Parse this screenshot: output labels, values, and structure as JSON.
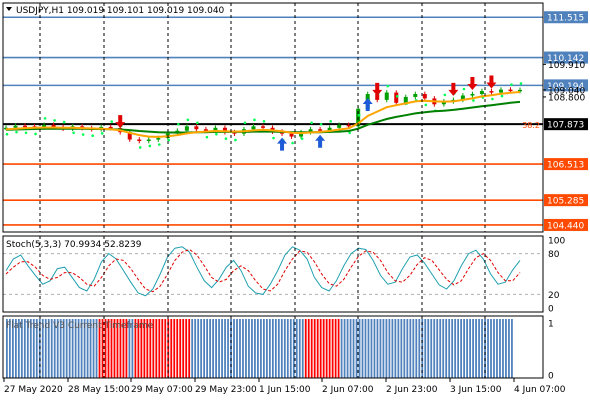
{
  "header": {
    "symbol_line": "USDJPY,H1  109.019 109.101 109.019 109.040"
  },
  "colors": {
    "background": "#ffffff",
    "grid": "#000000",
    "hline_blue": "#4f81bd",
    "hline_orange": "#ff4a00",
    "hline_black": "#000000",
    "price_label_blue": "#4f81bd",
    "price_label_orange": "#ff4a00",
    "price_label_black": "#000000",
    "candle_up": "#00a000",
    "candle_down": "#e00000",
    "ma_fast": "#ffa500",
    "ma_slow": "#008000",
    "psar": "#00ff55",
    "arrow_up": "#1e5bd6",
    "arrow_down": "#e00000",
    "stoch_main": "#20a0b0",
    "stoch_signal": "#e00000",
    "flat_blue": "#4f81bd",
    "flat_red": "#ff0000"
  },
  "chart_data": [
    {
      "type": "line",
      "title": "USDJPY,H1",
      "ohlc_header": {
        "open": 109.019,
        "high": 109.101,
        "low": 109.019,
        "close": 109.04
      },
      "y_axis": {
        "min": 104.2,
        "max": 112.0,
        "tick_labels": [
          "111.515",
          "110.142",
          "109.910",
          "109.194",
          "109.040",
          "108.800",
          "107.873",
          "106.513",
          "105.285",
          "104.440"
        ]
      },
      "x_axis": {
        "tick_labels": [
          "27 May 2020",
          "28 May 15:00",
          "29 May 07:00",
          "29 May 23:00",
          "1 Jun 15:00",
          "2 Jun 07:00",
          "2 Jun 23:00",
          "3 Jun 15:00",
          "4 Jun 07:00"
        ]
      },
      "horizontal_levels": [
        {
          "price": 111.515,
          "color": "blue"
        },
        {
          "price": 110.142,
          "color": "blue"
        },
        {
          "price": 109.194,
          "color": "blue"
        },
        {
          "price": 107.873,
          "color": "black",
          "label": "38.2"
        },
        {
          "price": 106.513,
          "color": "orange"
        },
        {
          "price": 105.285,
          "color": "orange"
        },
        {
          "price": 104.44,
          "color": "orange"
        }
      ],
      "close_series": [
        107.75,
        107.82,
        107.8,
        107.76,
        107.85,
        107.78,
        107.72,
        107.8,
        107.74,
        107.7,
        107.78,
        107.74,
        107.6,
        107.35,
        107.3,
        107.35,
        107.4,
        107.55,
        107.65,
        107.8,
        107.7,
        107.65,
        107.75,
        107.6,
        107.55,
        107.7,
        107.8,
        107.75,
        107.62,
        107.55,
        107.45,
        107.6,
        107.7,
        107.65,
        107.75,
        107.85,
        107.8,
        108.4,
        108.9,
        108.7,
        108.95,
        108.6,
        108.8,
        108.9,
        108.75,
        108.55,
        108.65,
        108.7,
        108.85,
        108.9,
        109.0,
        108.95,
        109.05,
        109.0,
        109.04
      ],
      "ma_fast": [
        107.7,
        107.72,
        107.74,
        107.75,
        107.76,
        107.76,
        107.75,
        107.75,
        107.74,
        107.73,
        107.72,
        107.7,
        107.66,
        107.58,
        107.5,
        107.45,
        107.44,
        107.46,
        107.5,
        107.56,
        107.6,
        107.62,
        107.64,
        107.63,
        107.62,
        107.63,
        107.66,
        107.68,
        107.66,
        107.63,
        107.58,
        107.57,
        107.59,
        107.61,
        107.64,
        107.69,
        107.73,
        107.9,
        108.15,
        108.3,
        108.45,
        108.52,
        108.58,
        108.65,
        108.67,
        108.65,
        108.64,
        108.65,
        108.7,
        108.75,
        108.82,
        108.86,
        108.91,
        108.94,
        108.97
      ],
      "ma_slow": [
        107.68,
        107.69,
        107.7,
        107.71,
        107.72,
        107.72,
        107.72,
        107.72,
        107.72,
        107.71,
        107.71,
        107.7,
        107.69,
        107.67,
        107.64,
        107.62,
        107.6,
        107.59,
        107.59,
        107.59,
        107.6,
        107.6,
        107.61,
        107.61,
        107.61,
        107.61,
        107.62,
        107.62,
        107.62,
        107.61,
        107.6,
        107.6,
        107.6,
        107.6,
        107.61,
        107.62,
        107.64,
        107.72,
        107.85,
        107.95,
        108.05,
        108.12,
        108.18,
        108.24,
        108.28,
        108.31,
        108.33,
        108.36,
        108.4,
        108.44,
        108.48,
        108.52,
        108.56,
        108.6,
        108.63
      ],
      "arrows_up_index": [
        29,
        33,
        38
      ],
      "arrows_down_index": [
        12,
        39,
        47,
        49,
        51
      ]
    },
    {
      "type": "line",
      "title": "Stoch(5,3,3) 70.9934 52.8239",
      "y_axis": {
        "min": 0,
        "max": 100,
        "tick_labels": [
          "100",
          "80",
          "20",
          "0"
        ]
      },
      "levels": [
        80,
        20
      ],
      "series": [
        {
          "name": "main",
          "values": [
            55,
            72,
            78,
            62,
            48,
            35,
            40,
            58,
            60,
            45,
            30,
            25,
            42,
            68,
            80,
            72,
            55,
            38,
            22,
            18,
            28,
            50,
            75,
            88,
            90,
            82,
            60,
            40,
            30,
            42,
            60,
            70,
            55,
            32,
            22,
            20,
            35,
            55,
            78,
            90,
            85,
            72,
            45,
            30,
            25,
            40,
            62,
            80,
            88,
            86,
            70,
            48,
            35,
            38,
            58,
            75,
            78,
            66,
            50,
            34,
            28,
            40,
            62,
            80,
            85,
            72,
            50,
            35,
            38,
            56,
            70
          ]
        },
        {
          "name": "signal",
          "values": [
            50,
            60,
            68,
            68,
            60,
            48,
            42,
            45,
            52,
            52,
            45,
            35,
            32,
            45,
            62,
            72,
            70,
            58,
            42,
            28,
            24,
            32,
            50,
            70,
            82,
            86,
            78,
            62,
            45,
            38,
            42,
            55,
            62,
            55,
            40,
            28,
            25,
            35,
            55,
            72,
            84,
            82,
            68,
            50,
            36,
            32,
            42,
            60,
            76,
            84,
            82,
            70,
            52,
            40,
            38,
            48,
            64,
            74,
            70,
            56,
            42,
            34,
            40,
            58,
            74,
            80,
            70,
            52,
            40,
            40,
            52
          ]
        }
      ]
    },
    {
      "type": "bar",
      "title": "Flat Trend V3 Current Timeframe",
      "y_axis": {
        "min": 0,
        "max": 1,
        "tick_labels": [
          "1",
          "0"
        ]
      },
      "values": [
        1,
        1,
        1,
        1,
        1,
        1,
        1,
        1,
        1,
        1,
        1,
        1,
        1,
        1,
        1,
        1,
        1,
        1,
        1,
        1,
        1,
        1,
        1,
        1,
        1,
        1,
        1,
        1,
        1,
        1,
        1,
        1,
        1,
        1,
        1,
        1,
        1,
        1,
        1,
        1,
        1,
        1,
        1,
        1,
        1,
        1,
        1,
        1,
        1,
        1,
        1,
        1,
        1,
        1,
        1,
        1,
        1,
        1,
        1,
        1,
        1,
        1,
        1,
        1,
        1,
        1,
        1,
        1,
        1,
        1,
        1,
        1,
        1,
        1,
        1,
        1,
        1,
        1,
        1,
        1,
        1,
        1,
        1,
        1,
        1,
        1,
        1,
        1,
        1,
        1,
        1,
        1,
        1,
        1,
        1,
        1,
        1,
        1,
        1,
        1,
        1,
        1,
        1,
        1,
        1,
        1,
        1,
        1,
        1,
        1,
        1,
        1,
        1,
        1,
        1,
        1,
        1,
        1,
        1,
        1,
        1,
        1,
        1,
        1,
        1,
        1,
        1,
        1,
        1,
        1,
        1,
        1,
        1,
        1,
        1,
        1,
        1,
        1,
        1,
        1,
        1,
        1,
        1,
        1,
        1,
        1,
        1,
        1,
        1,
        1,
        1,
        1,
        1,
        1,
        1,
        1,
        1,
        1,
        1,
        1,
        1,
        1,
        1,
        1,
        1,
        1,
        1,
        1,
        1,
        1
      ],
      "bar_state": [
        "B",
        "B",
        "B",
        "B",
        "B",
        "B",
        "B",
        "B",
        "B",
        "B",
        "B",
        "B",
        "B",
        "B",
        "B",
        "B",
        "B",
        "B",
        "B",
        "B",
        "B",
        "B",
        "B",
        "B",
        "B",
        "B",
        "B",
        "B",
        "B",
        "B",
        "B",
        "R",
        "R",
        "R",
        "R",
        "R",
        "R",
        "R",
        "R",
        "R",
        "R",
        "B",
        "B",
        "R",
        "R",
        "R",
        "R",
        "R",
        "R",
        "R",
        "R",
        "R",
        "R",
        "R",
        "R",
        "R",
        "R",
        "R",
        "R",
        "R",
        "R",
        "R",
        "B",
        "B",
        "B",
        "B",
        "B",
        "B",
        "B",
        "B",
        "B",
        "B",
        "B",
        "B",
        "B",
        "B",
        "B",
        "B",
        "B",
        "B",
        "B",
        "B",
        "B",
        "B",
        "B",
        "B",
        "B",
        "B",
        "B",
        "B",
        "B",
        "B",
        "B",
        "B",
        "B",
        "B",
        "B",
        "B",
        "B",
        "B",
        "R",
        "R",
        "R",
        "R",
        "R",
        "R",
        "R",
        "R",
        "R",
        "R",
        "R",
        "R",
        "B",
        "B",
        "B",
        "B",
        "B",
        "B",
        "B",
        "B",
        "B",
        "B",
        "B",
        "B",
        "B",
        "B",
        "B",
        "B",
        "B",
        "B",
        "B",
        "B",
        "B",
        "B",
        "B",
        "B",
        "B",
        "B",
        "B",
        "B",
        "B",
        "B",
        "B",
        "B",
        "B",
        "B",
        "B",
        "B",
        "B",
        "B",
        "B",
        "B",
        "B",
        "B",
        "B",
        "B",
        "B",
        "B",
        "B",
        "B",
        "B",
        "B",
        "B",
        "B",
        "B",
        "B",
        "B",
        "B",
        "B",
        "B",
        "B",
        "B"
      ]
    }
  ]
}
